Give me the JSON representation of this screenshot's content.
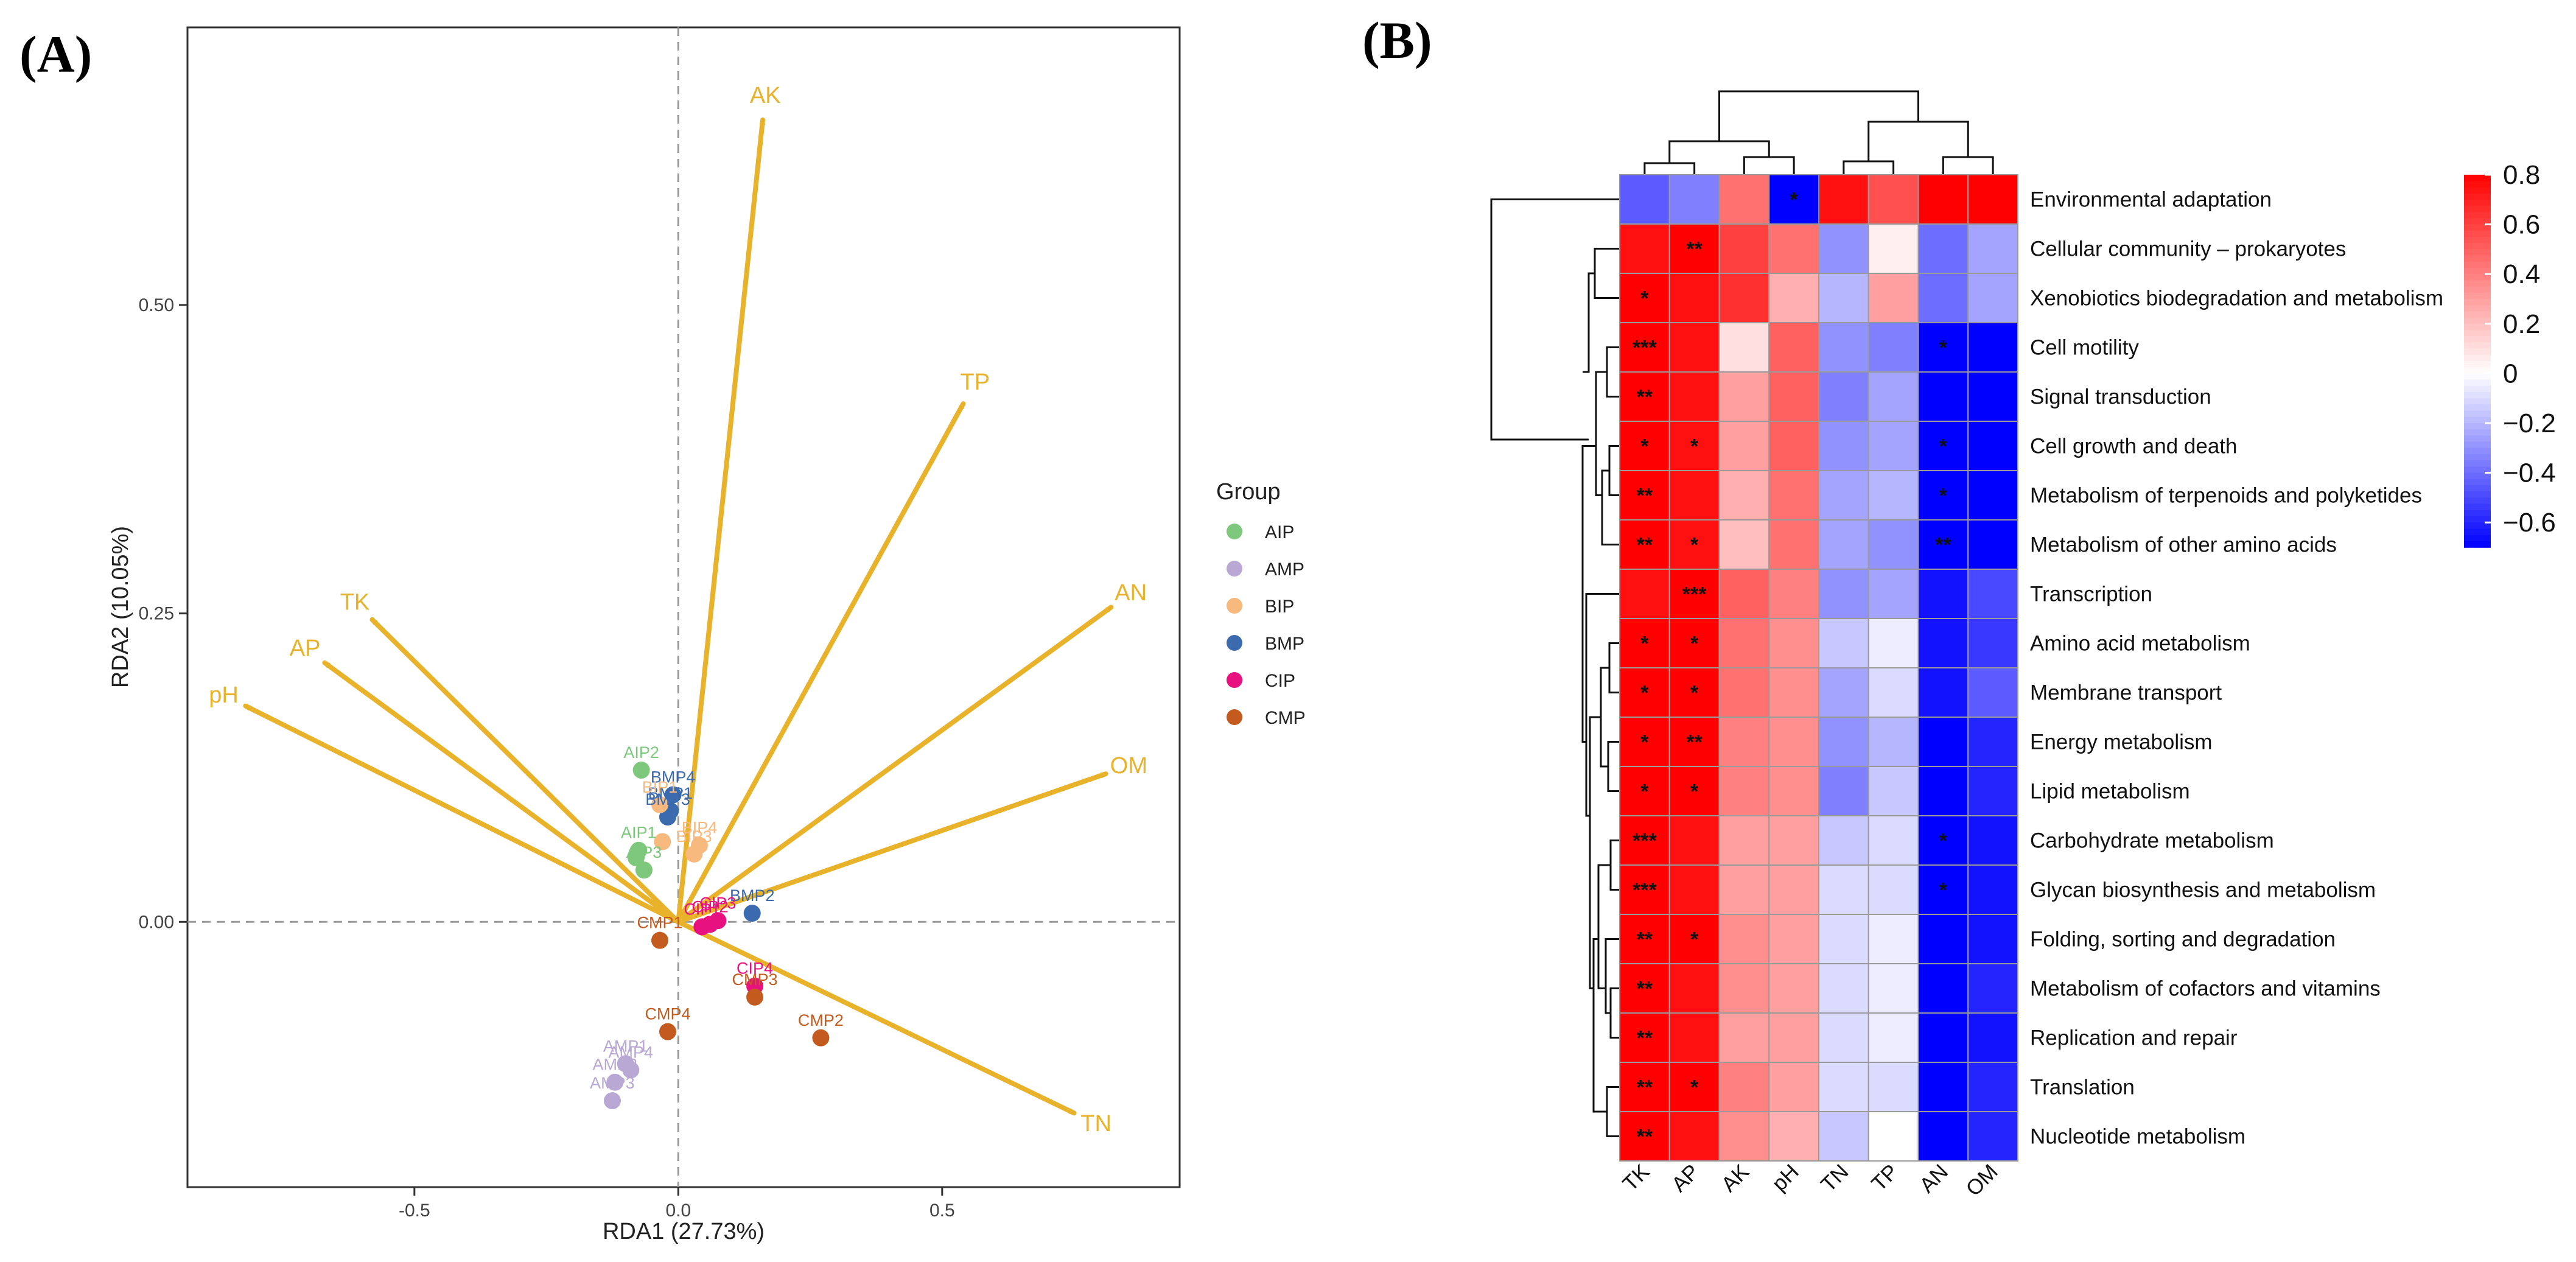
{
  "panel_a_label": "(A)",
  "panel_b_label": "(B)",
  "chart_data": [
    {
      "type": "scatter",
      "subtype": "rda_biplot",
      "xlabel": "RDA1 (27.73%)",
      "ylabel": "RDA2 (10.05%)",
      "xlim": [
        -0.93,
        0.95
      ],
      "ylim": [
        -0.215,
        0.725
      ],
      "xticks": [
        -0.5,
        0.0,
        0.5
      ],
      "yticks": [
        0.0,
        0.25,
        0.5
      ],
      "xtick_labels": [
        "-0.5",
        "0.0",
        "0.5"
      ],
      "ytick_labels": [
        "0.00",
        "0.25",
        "0.50"
      ],
      "grid": false,
      "arrow_color": "#E8B22B",
      "arrows": [
        {
          "name": "AK",
          "x": 0.16,
          "y": 0.65
        },
        {
          "name": "TP",
          "x": 0.54,
          "y": 0.42
        },
        {
          "name": "TK",
          "x": -0.58,
          "y": 0.245
        },
        {
          "name": "AP",
          "x": -0.67,
          "y": 0.21
        },
        {
          "name": "pH",
          "x": -0.82,
          "y": 0.175
        },
        {
          "name": "AN",
          "x": 0.82,
          "y": 0.255
        },
        {
          "name": "OM",
          "x": 0.81,
          "y": 0.12
        },
        {
          "name": "TN",
          "x": 0.75,
          "y": -0.155
        }
      ],
      "legend": {
        "title": "Group",
        "position": "right",
        "entries": [
          {
            "name": "AIP",
            "color": "#7DC87D"
          },
          {
            "name": "AMP",
            "color": "#B9A8D4"
          },
          {
            "name": "BIP",
            "color": "#F7B97D"
          },
          {
            "name": "BMP",
            "color": "#3B6AAE"
          },
          {
            "name": "CIP",
            "color": "#E7127F"
          },
          {
            "name": "CMP",
            "color": "#C35A1E"
          }
        ]
      },
      "points": [
        {
          "label": "AIP2",
          "group": "AIP",
          "x": -0.07,
          "y": 0.123
        },
        {
          "label": "AIP1",
          "group": "AIP",
          "x": -0.075,
          "y": 0.058
        },
        {
          "label": "AIP3",
          "group": "AIP",
          "x": -0.065,
          "y": 0.042
        },
        {
          "label": "AIP4",
          "group": "AIP",
          "x": -0.08,
          "y": 0.052
        },
        {
          "label": "BMP4",
          "group": "BMP",
          "x": -0.01,
          "y": 0.103
        },
        {
          "label": "BMP1",
          "group": "BMP",
          "x": -0.015,
          "y": 0.09
        },
        {
          "label": "BMP3",
          "group": "BMP",
          "x": -0.02,
          "y": 0.085
        },
        {
          "label": "BMP2",
          "group": "BMP",
          "x": 0.14,
          "y": 0.007
        },
        {
          "label": "BIP1",
          "group": "BIP",
          "x": -0.035,
          "y": 0.095
        },
        {
          "label": "BIP2",
          "group": "BIP",
          "x": -0.03,
          "y": 0.065
        },
        {
          "label": "BIP3",
          "group": "BIP",
          "x": 0.03,
          "y": 0.055
        },
        {
          "label": "BIP4",
          "group": "BIP",
          "x": 0.04,
          "y": 0.062
        },
        {
          "label": "CIP1",
          "group": "CIP",
          "x": 0.045,
          "y": -0.004
        },
        {
          "label": "CIP2",
          "group": "CIP",
          "x": 0.06,
          "y": -0.002
        },
        {
          "label": "CIP3",
          "group": "CIP",
          "x": 0.075,
          "y": 0.001
        },
        {
          "label": "CIP4",
          "group": "CIP",
          "x": 0.145,
          "y": -0.052
        },
        {
          "label": "CMP1",
          "group": "CMP",
          "x": -0.035,
          "y": -0.015
        },
        {
          "label": "CMP2",
          "group": "CMP",
          "x": 0.27,
          "y": -0.094
        },
        {
          "label": "CMP3",
          "group": "CMP",
          "x": 0.145,
          "y": -0.061
        },
        {
          "label": "CMP4",
          "group": "CMP",
          "x": -0.02,
          "y": -0.089
        },
        {
          "label": "AMP1",
          "group": "AMP",
          "x": -0.1,
          "y": -0.115
        },
        {
          "label": "AMP4",
          "group": "AMP",
          "x": -0.09,
          "y": -0.12
        },
        {
          "label": "AMP2",
          "group": "AMP",
          "x": -0.12,
          "y": -0.13
        },
        {
          "label": "AMP3",
          "group": "AMP",
          "x": -0.125,
          "y": -0.145
        }
      ],
      "visible_point_labels": [
        "AIP2",
        "AIP1",
        "AIP3",
        "BMP4",
        "BMP1",
        "BMP3",
        "BIP1",
        "BIP4",
        "BIP3",
        "BMP2",
        "CIP1",
        "CIP2",
        "CIP3",
        "CMP1",
        "CIP4",
        "CMP3",
        "CMP4",
        "CMP2",
        "AMP1",
        "AMP4",
        "AMP2",
        "AMP3"
      ]
    },
    {
      "type": "heatmap",
      "subtype": "clustered_correlation",
      "columns": [
        "TK",
        "AP",
        "AK",
        "pH",
        "TN",
        "TP",
        "AN",
        "OM"
      ],
      "rows": [
        "Environmental adaptation",
        "Cellular community – prokaryotes",
        "Xenobiotics biodegradation and metabolism",
        "Cell motility",
        "Signal transduction",
        "Cell growth and death",
        "Metabolism of terpenoids and polyketides",
        "Metabolism of other amino acids",
        "Transcription",
        "Amino acid metabolism",
        "Membrane transport",
        "Energy metabolism",
        "Lipid metabolism",
        "Carbohydrate metabolism",
        "Glycan biosynthesis and metabolism",
        "Folding, sorting and degradation",
        "Metabolism of cofactors and vitamins",
        "Replication and repair",
        "Translation",
        "Nucleotide metabolism"
      ],
      "values": [
        [
          -0.45,
          -0.35,
          0.45,
          -0.75,
          0.75,
          0.55,
          0.8,
          0.8
        ],
        [
          0.75,
          0.85,
          0.6,
          0.45,
          -0.3,
          0.05,
          -0.4,
          -0.25
        ],
        [
          0.8,
          0.75,
          0.65,
          0.25,
          -0.2,
          0.3,
          -0.4,
          -0.25
        ],
        [
          0.8,
          0.75,
          0.1,
          0.5,
          -0.3,
          -0.35,
          -0.75,
          -0.75
        ],
        [
          0.8,
          0.75,
          0.3,
          0.5,
          -0.35,
          -0.25,
          -0.75,
          -0.7
        ],
        [
          0.8,
          0.75,
          0.3,
          0.5,
          -0.3,
          -0.25,
          -0.75,
          -0.7
        ],
        [
          0.8,
          0.75,
          0.25,
          0.45,
          -0.25,
          -0.2,
          -0.75,
          -0.7
        ],
        [
          0.8,
          0.75,
          0.2,
          0.45,
          -0.25,
          -0.3,
          -0.8,
          -0.7
        ],
        [
          0.75,
          0.85,
          0.5,
          0.4,
          -0.3,
          -0.25,
          -0.65,
          -0.5
        ],
        [
          0.8,
          0.8,
          0.45,
          0.35,
          -0.15,
          -0.05,
          -0.65,
          -0.55
        ],
        [
          0.8,
          0.8,
          0.45,
          0.35,
          -0.25,
          -0.1,
          -0.65,
          -0.45
        ],
        [
          0.8,
          0.8,
          0.4,
          0.35,
          -0.3,
          -0.2,
          -0.7,
          -0.6
        ],
        [
          0.8,
          0.8,
          0.4,
          0.35,
          -0.35,
          -0.15,
          -0.7,
          -0.6
        ],
        [
          0.8,
          0.75,
          0.3,
          0.3,
          -0.15,
          -0.1,
          -0.75,
          -0.65
        ],
        [
          0.8,
          0.75,
          0.3,
          0.3,
          -0.1,
          -0.1,
          -0.75,
          -0.65
        ],
        [
          0.8,
          0.8,
          0.35,
          0.3,
          -0.1,
          -0.05,
          -0.7,
          -0.65
        ],
        [
          0.8,
          0.75,
          0.35,
          0.3,
          -0.1,
          -0.05,
          -0.7,
          -0.6
        ],
        [
          0.8,
          0.75,
          0.3,
          0.3,
          -0.1,
          -0.05,
          -0.75,
          -0.65
        ],
        [
          0.8,
          0.8,
          0.4,
          0.3,
          -0.1,
          -0.1,
          -0.7,
          -0.6
        ],
        [
          0.8,
          0.75,
          0.35,
          0.25,
          -0.15,
          0.0,
          -0.7,
          -0.6
        ]
      ],
      "significance": [
        [
          "",
          "",
          "",
          "*",
          "",
          "",
          "",
          ""
        ],
        [
          "",
          "**",
          "",
          "",
          "",
          "",
          "",
          ""
        ],
        [
          "*",
          "",
          "",
          "",
          "",
          "",
          "",
          ""
        ],
        [
          "***",
          "",
          "",
          "",
          "",
          "",
          "*",
          ""
        ],
        [
          "**",
          "",
          "",
          "",
          "",
          "",
          "",
          ""
        ],
        [
          "*",
          "*",
          "",
          "",
          "",
          "",
          "*",
          ""
        ],
        [
          "**",
          "",
          "",
          "",
          "",
          "",
          "*",
          ""
        ],
        [
          "**",
          "*",
          "",
          "",
          "",
          "",
          "**",
          ""
        ],
        [
          "",
          "***",
          "",
          "",
          "",
          "",
          "",
          ""
        ],
        [
          "*",
          "*",
          "",
          "",
          "",
          "",
          "",
          ""
        ],
        [
          "*",
          "*",
          "",
          "",
          "",
          "",
          "",
          ""
        ],
        [
          "*",
          "**",
          "",
          "",
          "",
          "",
          "",
          ""
        ],
        [
          "*",
          "*",
          "",
          "",
          "",
          "",
          "",
          ""
        ],
        [
          "***",
          "",
          "",
          "",
          "",
          "",
          "*",
          ""
        ],
        [
          "***",
          "",
          "",
          "",
          "",
          "",
          "*",
          ""
        ],
        [
          "**",
          "*",
          "",
          "",
          "",
          "",
          "",
          ""
        ],
        [
          "**",
          "",
          "",
          "",
          "",
          "",
          "",
          ""
        ],
        [
          "**",
          "",
          "",
          "",
          "",
          "",
          "",
          ""
        ],
        [
          "**",
          "*",
          "",
          "",
          "",
          "",
          "",
          ""
        ],
        [
          "**",
          "",
          "",
          "",
          "",
          "",
          "",
          ""
        ]
      ],
      "color_scale": {
        "min": -0.7,
        "max": 0.8,
        "low_color": "#0000FF",
        "mid_color": "#FFFFFF",
        "high_color": "#FF0000",
        "ticks": [
          0.8,
          0.6,
          0.4,
          0.2,
          0.0,
          -0.2,
          -0.4,
          -0.6
        ],
        "tick_labels": [
          "0.8",
          "0.6",
          "0.4",
          "0.2",
          "0",
          "−0.2",
          "−0.4",
          "−0.6"
        ]
      }
    }
  ]
}
